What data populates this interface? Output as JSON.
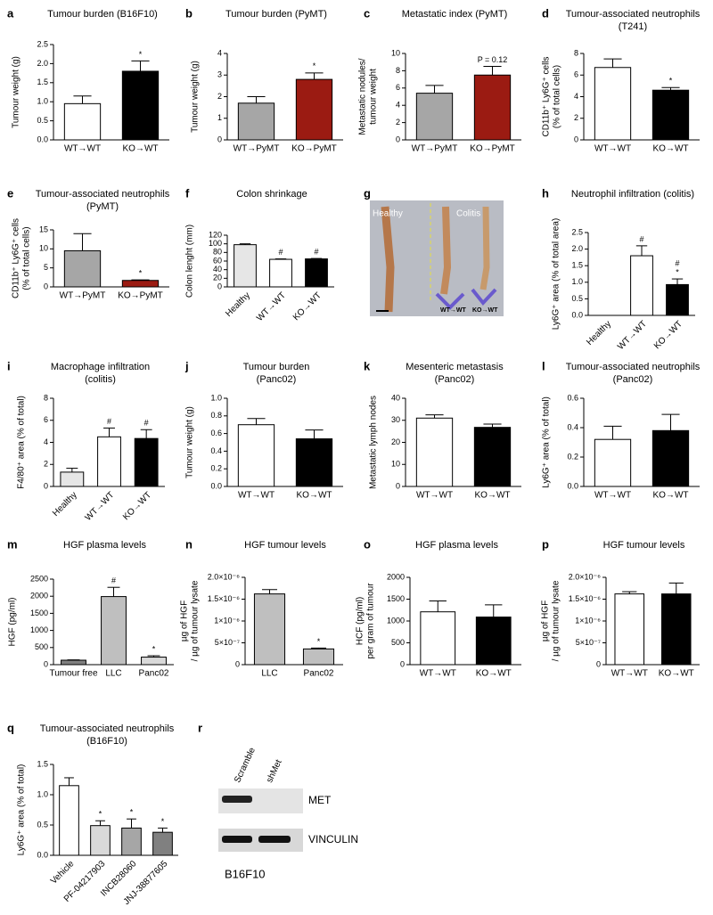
{
  "chart_data": [
    {
      "type": "bar",
      "panel": "a",
      "title": [
        "Tumour burden  (B16F10)"
      ],
      "ylabel": [
        "Tumour weight (g)"
      ],
      "categories": [
        "WT→WT",
        "KO→WT"
      ],
      "values": [
        0.95,
        1.8
      ],
      "errors": [
        0.2,
        0.27
      ],
      "colors": [
        "#ffffff",
        "#000000"
      ],
      "markers": [
        null,
        [
          "*"
        ]
      ],
      "ylim": [
        0,
        2.5
      ],
      "yticks": [
        {
          "value": 0,
          "label": "0.0"
        },
        0.5,
        {
          "value": 1,
          "label": "1.0"
        },
        1.5,
        {
          "value": 2,
          "label": "2.0"
        },
        2.5
      ]
    },
    {
      "type": "bar",
      "panel": "b",
      "title": [
        "Tumour burden  (PyMT)"
      ],
      "ylabel": [
        "Tumour weight (g)"
      ],
      "categories": [
        "WT→PyMT",
        "KO→PyMT"
      ],
      "values": [
        1.7,
        2.8
      ],
      "errors": [
        0.3,
        0.3
      ],
      "colors": [
        "#a6a6a6",
        "#9b1b12"
      ],
      "markers": [
        null,
        [
          "*"
        ]
      ],
      "ylim": [
        0,
        4
      ],
      "yticks": [
        0,
        1,
        2,
        3,
        4
      ]
    },
    {
      "type": "bar",
      "panel": "c",
      "title": [
        "Metastatic index (PyMT)"
      ],
      "ylabel": [
        "Metastatic nodules/",
        "tumour weight"
      ],
      "categories": [
        "WT→PyMT",
        "KO→PyMT"
      ],
      "values": [
        5.4,
        7.5
      ],
      "errors": [
        0.9,
        1.0
      ],
      "colors": [
        "#a6a6a6",
        "#9b1b12"
      ],
      "markers": [
        null,
        [
          "P = 0.12"
        ]
      ],
      "ylim": [
        0,
        10
      ],
      "yticks": [
        0,
        2,
        4,
        6,
        8,
        10
      ]
    },
    {
      "type": "bar",
      "panel": "d",
      "title": [
        "Tumour-associated neutrophils",
        "(T241)"
      ],
      "ylabel": [
        "CD11b⁺ Ly6G⁺ cells",
        "(% of total cells)"
      ],
      "categories": [
        "WT→WT",
        "KO→WT"
      ],
      "values": [
        6.7,
        4.6
      ],
      "errors": [
        0.8,
        0.25
      ],
      "colors": [
        "#ffffff",
        "#000000"
      ],
      "markers": [
        null,
        [
          "*"
        ]
      ],
      "ylim": [
        0,
        8
      ],
      "yticks": [
        0,
        2,
        4,
        6,
        8
      ]
    },
    {
      "type": "bar",
      "panel": "e",
      "title": [
        "Tumour-associated neutrophils",
        "(PyMT)"
      ],
      "ylabel": [
        "CD11b⁺ Ly6G⁺ cells",
        "(% of total cells)"
      ],
      "categories": [
        "WT→PyMT",
        "KO→PyMT"
      ],
      "values": [
        9.5,
        1.7
      ],
      "errors": [
        4.5,
        0.15
      ],
      "colors": [
        "#a6a6a6",
        "#9b1b12"
      ],
      "markers": [
        null,
        [
          "*"
        ]
      ],
      "ylim": [
        0,
        15
      ],
      "yticks": [
        0,
        5,
        10,
        15
      ]
    },
    {
      "type": "bar",
      "panel": "f",
      "title": [
        "Colon shrinkage"
      ],
      "ylabel": [
        "Colon lenght (mm)"
      ],
      "categories": [
        "Healthy",
        "WT→WT",
        "KO→WT"
      ],
      "values": [
        98,
        64,
        65
      ],
      "errors": [
        2,
        1,
        1
      ],
      "colors": [
        "#e6e6e6",
        "#ffffff",
        "#000000"
      ],
      "markers": [
        null,
        [
          "#"
        ],
        [
          "#"
        ]
      ],
      "ylim": [
        0,
        120
      ],
      "yticks": [
        0,
        20,
        40,
        60,
        80,
        100,
        120
      ]
    },
    {
      "type": "image",
      "panel": "g",
      "labels": [
        "Healthy",
        "Colitis",
        "WT→WT",
        "KO→WT"
      ]
    },
    {
      "type": "bar",
      "panel": "h",
      "title": [
        "Neutrophil infiltration (colitis)"
      ],
      "ylabel": [
        "Ly6G⁺ area (% of total area)"
      ],
      "categories": [
        "Healthy",
        "WT→WT",
        "KO→WT"
      ],
      "values": [
        0,
        1.8,
        0.93
      ],
      "errors": [
        0,
        0.3,
        0.17
      ],
      "colors": [
        "#ffffff",
        "#ffffff",
        "#000000"
      ],
      "markers": [
        null,
        [
          "#"
        ],
        [
          "#",
          "*"
        ]
      ],
      "ylim": [
        0,
        2.5
      ],
      "yticks": [
        {
          "value": 0,
          "label": "0.0"
        },
        0.5,
        {
          "value": 1,
          "label": "1.0"
        },
        1.5,
        {
          "value": 2,
          "label": "2.0"
        },
        2.5
      ]
    },
    {
      "type": "bar",
      "panel": "i",
      "title": [
        "Macrophage infiltration",
        "(colitis)"
      ],
      "ylabel": [
        "F4/80⁺ area (% of total)"
      ],
      "categories": [
        "Healthy",
        "WT→WT",
        "KO→WT"
      ],
      "values": [
        1.3,
        4.5,
        4.35
      ],
      "errors": [
        0.35,
        0.8,
        0.8
      ],
      "colors": [
        "#e6e6e6",
        "#ffffff",
        "#000000"
      ],
      "markers": [
        null,
        [
          "#"
        ],
        [
          "#"
        ]
      ],
      "ylim": [
        0,
        8
      ],
      "yticks": [
        0,
        2,
        4,
        6,
        8
      ]
    },
    {
      "type": "bar",
      "panel": "j",
      "title": [
        "Tumour burden",
        "(Panc02)"
      ],
      "ylabel": [
        "Tumour weight (g)"
      ],
      "categories": [
        "WT→WT",
        "KO→WT"
      ],
      "values": [
        0.7,
        0.54
      ],
      "errors": [
        0.07,
        0.1
      ],
      "colors": [
        "#ffffff",
        "#000000"
      ],
      "markers": [
        null,
        null
      ],
      "ylim": [
        0,
        1
      ],
      "yticks": [
        {
          "value": 0,
          "label": "0.0"
        },
        0.2,
        0.4,
        0.6,
        0.8,
        {
          "value": 1,
          "label": "1.0"
        }
      ]
    },
    {
      "type": "bar",
      "panel": "k",
      "title": [
        "Mesenteric metastasis",
        "(Panc02)"
      ],
      "ylabel": [
        "Metastatic lymph nodes"
      ],
      "categories": [
        "WT→WT",
        "KO→WT"
      ],
      "values": [
        31,
        26.8
      ],
      "errors": [
        1.5,
        1.5
      ],
      "colors": [
        "#ffffff",
        "#000000"
      ],
      "markers": [
        null,
        null
      ],
      "ylim": [
        0,
        40
      ],
      "yticks": [
        0,
        10,
        20,
        30,
        40
      ]
    },
    {
      "type": "bar",
      "panel": "l",
      "title": [
        "Tumour-associated neutrophils",
        "(Panc02)"
      ],
      "ylabel": [
        "Ly6G⁺ area (% of total)"
      ],
      "categories": [
        "WT→WT",
        "KO→WT"
      ],
      "values": [
        0.32,
        0.38
      ],
      "errors": [
        0.09,
        0.11
      ],
      "colors": [
        "#ffffff",
        "#000000"
      ],
      "markers": [
        null,
        null
      ],
      "ylim": [
        0,
        0.6
      ],
      "yticks": [
        {
          "value": 0,
          "label": "0.0"
        },
        0.2,
        0.4,
        0.6
      ]
    },
    {
      "type": "bar",
      "panel": "m",
      "title": [
        "HGF plasma levels"
      ],
      "ylabel": [
        "HGF (pg/ml)"
      ],
      "categories": [
        "Tumour free",
        "LLC",
        "Panc02"
      ],
      "values": [
        130,
        1990,
        220
      ],
      "errors": [
        10,
        270,
        40
      ],
      "colors": [
        "#808080",
        "#bfbfbf",
        "#d9d9d9"
      ],
      "markers": [
        null,
        [
          "#"
        ],
        [
          "*"
        ]
      ],
      "ylim": [
        0,
        2500
      ],
      "yticks": [
        0,
        500,
        1000,
        1500,
        2000,
        2500
      ]
    },
    {
      "type": "bar",
      "panel": "n",
      "title": [
        "HGF tumour levels"
      ],
      "ylabel": [
        "µg of HGF",
        "/ µg of tumour lysate"
      ],
      "categories": [
        "LLC",
        "Panc02"
      ],
      "values": [
        1.62e-06,
        3.6e-07
      ],
      "errors": [
        1e-07,
        2e-08
      ],
      "colors": [
        "#bfbfbf",
        "#bfbfbf"
      ],
      "markers": [
        null,
        [
          "*"
        ]
      ],
      "ylim": [
        0,
        2e-06
      ],
      "yticks": [
        0,
        {
          "value": 5e-07,
          "label": "5×10⁻⁷"
        },
        {
          "value": 1e-06,
          "label": "1×10⁻⁶"
        },
        {
          "value": 1.5e-06,
          "label": "1.5×10⁻⁶"
        },
        {
          "value": 2e-06,
          "label": "2.0×10⁻⁶"
        }
      ]
    },
    {
      "type": "bar",
      "panel": "o",
      "title": [
        "HGF plasma levels"
      ],
      "ylabel": [
        "HCF (pg/ml)",
        "per gram of tumour"
      ],
      "categories": [
        "WT→WT",
        "KO→WT"
      ],
      "values": [
        1210,
        1090
      ],
      "errors": [
        250,
        280
      ],
      "colors": [
        "#ffffff",
        "#000000"
      ],
      "markers": [
        null,
        null
      ],
      "ylim": [
        0,
        2000
      ],
      "yticks": [
        0,
        500,
        1000,
        1500,
        2000
      ]
    },
    {
      "type": "bar",
      "panel": "p",
      "title": [
        "HGF tumour levels"
      ],
      "ylabel": [
        "µg of HGF",
        "/ µg of tumour lysate"
      ],
      "categories": [
        "WT→WT",
        "KO→WT"
      ],
      "values": [
        1.62e-06,
        1.62e-06
      ],
      "errors": [
        5e-08,
        2.5e-07
      ],
      "colors": [
        "#ffffff",
        "#000000"
      ],
      "markers": [
        null,
        null
      ],
      "ylim": [
        0,
        2e-06
      ],
      "yticks": [
        0,
        {
          "value": 5e-07,
          "label": "5×10⁻⁷"
        },
        {
          "value": 1e-06,
          "label": "1×10⁻⁶"
        },
        {
          "value": 1.5e-06,
          "label": "1.5×10⁻⁶"
        },
        {
          "value": 2e-06,
          "label": "2.0×10⁻⁶"
        }
      ]
    },
    {
      "type": "bar",
      "panel": "q",
      "title": [
        "Tumour-associated neutrophils",
        "(B16F10)"
      ],
      "ylabel": [
        "Ly6G⁺ area (% of total)"
      ],
      "categories": [
        "Vehicle",
        "PF-04217903",
        "INCB28060",
        "JNJ-38877605"
      ],
      "values": [
        1.15,
        0.49,
        0.45,
        0.38
      ],
      "errors": [
        0.13,
        0.08,
        0.15,
        0.07
      ],
      "colors": [
        "#ffffff",
        "#d9d9d9",
        "#a6a6a6",
        "#808080"
      ],
      "markers": [
        null,
        [
          "*"
        ],
        [
          "*"
        ],
        [
          "*"
        ]
      ],
      "ylim": [
        0,
        1.5
      ],
      "yticks": [
        {
          "value": 0,
          "label": "0.0"
        },
        0.5,
        {
          "value": 1,
          "label": "1.0"
        },
        1.5
      ]
    },
    {
      "type": "blot",
      "panel": "r",
      "lanes": [
        "Scramble",
        "shMet"
      ],
      "bands": [
        "MET",
        "VINCULIN"
      ],
      "caption": "B16F10"
    }
  ]
}
